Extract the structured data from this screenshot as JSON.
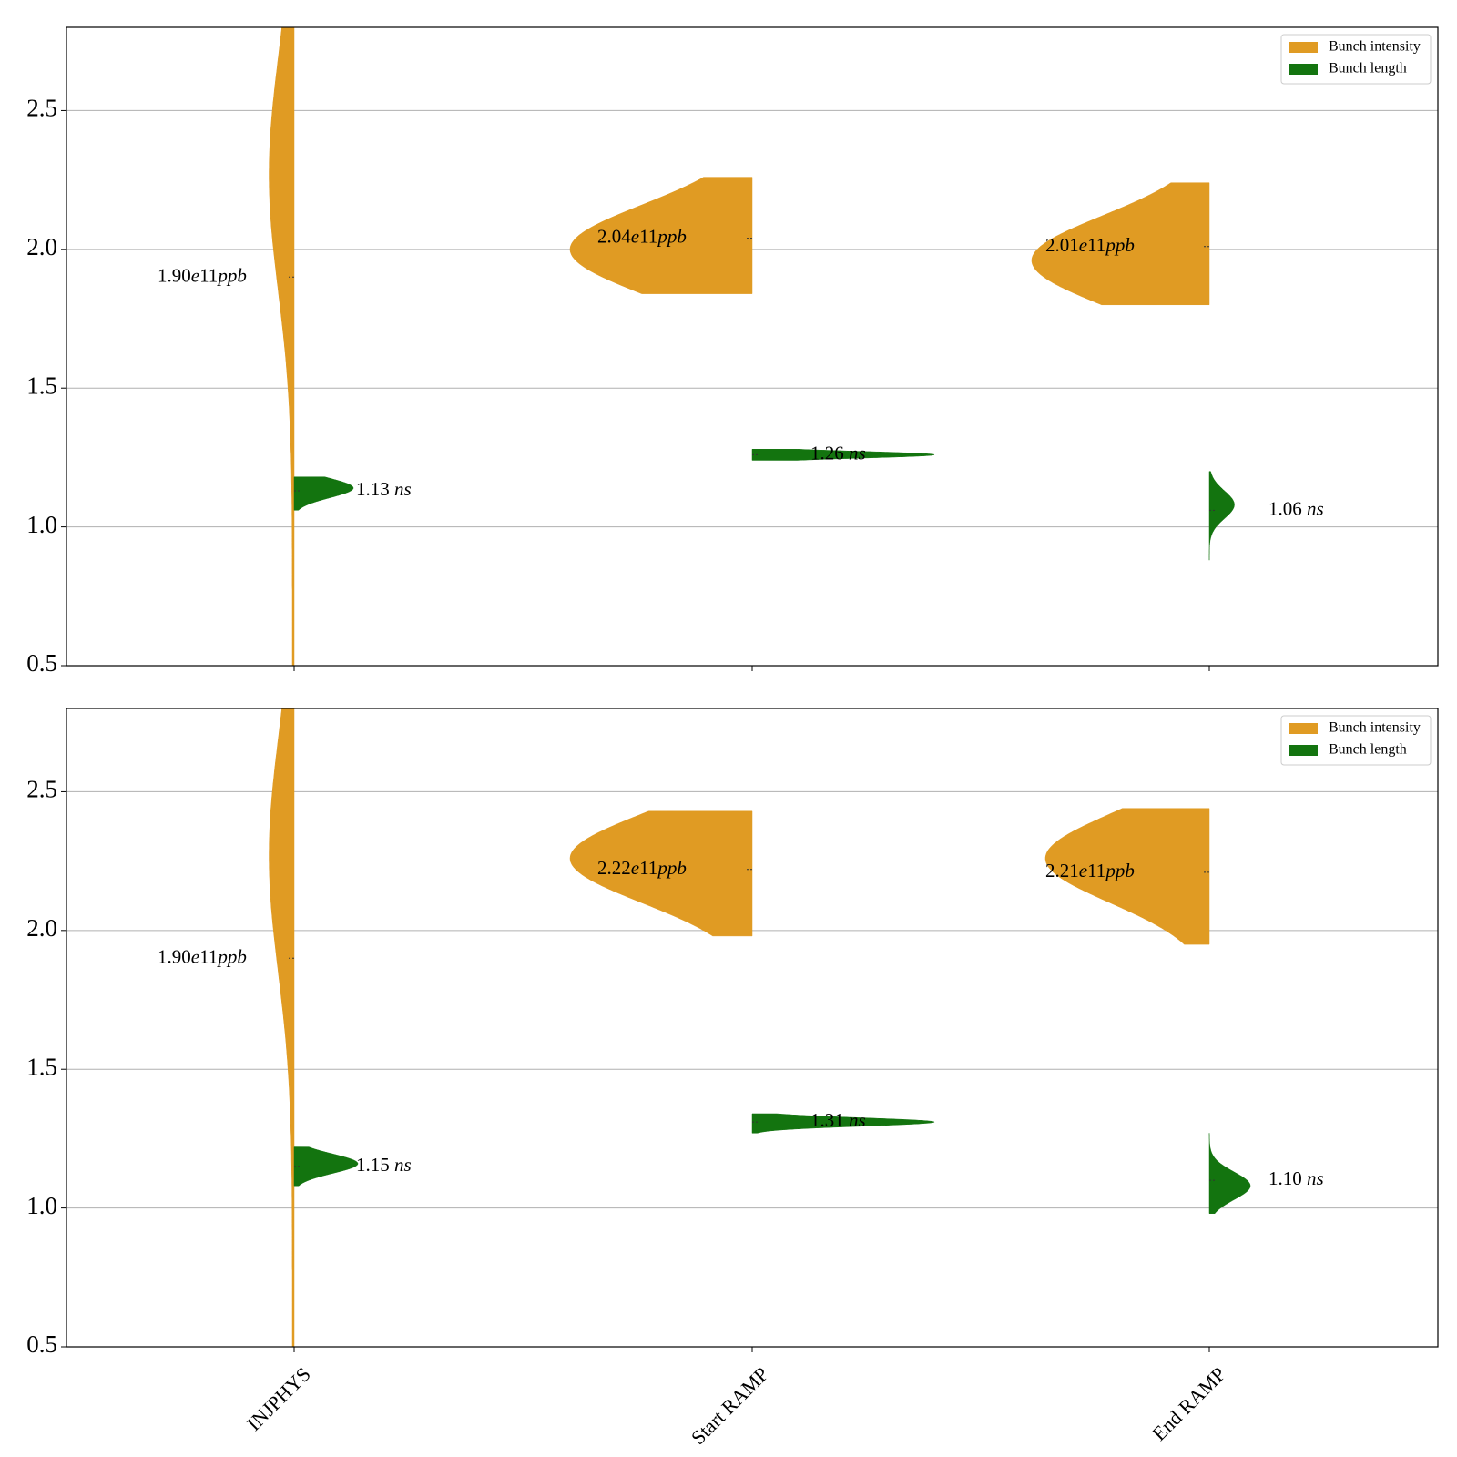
{
  "chart_data": [
    {
      "type": "violin",
      "panel": "top",
      "ylim": [
        0.5,
        2.8
      ],
      "yticks": [
        0.5,
        1.0,
        1.5,
        2.0,
        2.5
      ],
      "categories": [
        "INJPHYS",
        "Start RAMP",
        "End RAMP"
      ],
      "show_xtick_labels": false,
      "grid": "y",
      "legend": {
        "placement": "top-right",
        "entries": [
          {
            "label": "Bunch intensity",
            "color": "#e09b23"
          },
          {
            "label": "Bunch length",
            "color": "#13740f"
          }
        ]
      },
      "series": [
        {
          "name": "Bunch intensity",
          "color": "#e09b23",
          "side": "left",
          "annotations": [
            "1.90e11ppb",
            "2.04e11ppb",
            "2.01e11ppb"
          ],
          "annotation_y": [
            1.9,
            2.04,
            2.01
          ],
          "violins": [
            {
              "min": 0.5,
              "max": 2.8,
              "median": 1.9,
              "mode": 2.27,
              "spread": 0.42,
              "peak_width": 0.055,
              "tail_width": 0.004
            },
            {
              "min": 1.84,
              "max": 2.26,
              "median": 2.04,
              "mode": 2.0,
              "spread": 0.16,
              "peak_width": 0.4,
              "tail_width": 0.0
            },
            {
              "min": 1.8,
              "max": 2.24,
              "median": 2.01,
              "mode": 1.96,
              "spread": 0.16,
              "peak_width": 0.39,
              "tail_width": 0.0
            }
          ]
        },
        {
          "name": "Bunch length",
          "color": "#13740f",
          "side": "right",
          "annotations": [
            "1.13 ns",
            "1.26 ns",
            "1.06 ns"
          ],
          "annotation_y": [
            1.13,
            1.26,
            1.06
          ],
          "violins": [
            {
              "min": 1.06,
              "max": 1.18,
              "median": 1.13,
              "mode": 1.14,
              "spread": 0.035,
              "peak_width": 0.13,
              "tail_width": 0.0
            },
            {
              "min": 1.24,
              "max": 1.28,
              "median": 1.26,
              "mode": 1.26,
              "spread": 0.012,
              "peak_width": 0.4,
              "tail_width": 0.0
            },
            {
              "min": 0.88,
              "max": 1.2,
              "median": 1.06,
              "mode": 1.08,
              "spread": 0.05,
              "peak_width": 0.055,
              "tail_width": 0.0
            }
          ]
        }
      ]
    },
    {
      "type": "violin",
      "panel": "bottom",
      "ylim": [
        0.5,
        2.8
      ],
      "yticks": [
        0.5,
        1.0,
        1.5,
        2.0,
        2.5
      ],
      "categories": [
        "INJPHYS",
        "Start RAMP",
        "End RAMP"
      ],
      "show_xtick_labels": true,
      "grid": "y",
      "legend": {
        "placement": "top-right",
        "entries": [
          {
            "label": "Bunch intensity",
            "color": "#e09b23"
          },
          {
            "label": "Bunch length",
            "color": "#13740f"
          }
        ]
      },
      "series": [
        {
          "name": "Bunch intensity",
          "color": "#e09b23",
          "side": "left",
          "annotations": [
            "1.90e11ppb",
            "2.22e11ppb",
            "2.21e11ppb"
          ],
          "annotation_y": [
            1.9,
            2.22,
            2.21
          ],
          "violins": [
            {
              "min": 0.5,
              "max": 2.8,
              "median": 1.9,
              "mode": 2.27,
              "spread": 0.42,
              "peak_width": 0.055,
              "tail_width": 0.004
            },
            {
              "min": 1.98,
              "max": 2.43,
              "median": 2.22,
              "mode": 2.26,
              "spread": 0.16,
              "peak_width": 0.4,
              "tail_width": 0.0
            },
            {
              "min": 1.95,
              "max": 2.44,
              "median": 2.21,
              "mode": 2.26,
              "spread": 0.16,
              "peak_width": 0.36,
              "tail_width": 0.0
            }
          ]
        },
        {
          "name": "Bunch length",
          "color": "#13740f",
          "side": "right",
          "annotations": [
            "1.15 ns",
            "1.31 ns",
            "1.10 ns"
          ],
          "annotation_y": [
            1.15,
            1.31,
            1.1
          ],
          "violins": [
            {
              "min": 1.08,
              "max": 1.22,
              "median": 1.15,
              "mode": 1.16,
              "spread": 0.035,
              "peak_width": 0.14,
              "tail_width": 0.0
            },
            {
              "min": 1.27,
              "max": 1.34,
              "median": 1.31,
              "mode": 1.31,
              "spread": 0.015,
              "peak_width": 0.4,
              "tail_width": 0.0
            },
            {
              "min": 0.98,
              "max": 1.27,
              "median": 1.1,
              "mode": 1.08,
              "spread": 0.05,
              "peak_width": 0.09,
              "tail_width": 0.0
            }
          ]
        }
      ]
    }
  ]
}
